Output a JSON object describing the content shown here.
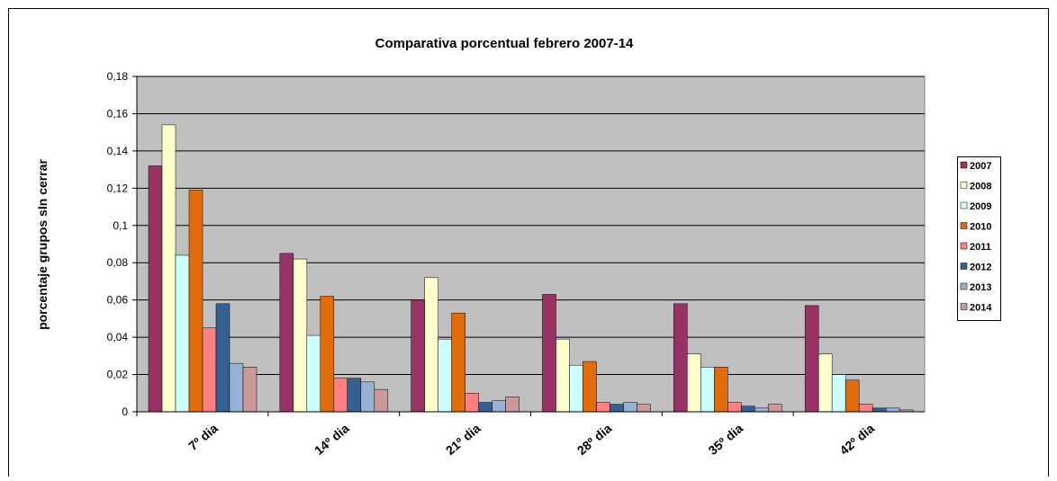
{
  "chart_data": {
    "type": "bar",
    "title": "Comparativa porcentual febrero 2007-14",
    "y_label": "porcentaje grupos sIn cerrar",
    "categories": [
      "7º dia",
      "14º dia",
      "21º dia",
      "28º dia",
      "35º dia",
      "42º dia"
    ],
    "series": [
      {
        "name": "2007",
        "color": "#993366",
        "values": [
          0.132,
          0.085,
          0.06,
          0.063,
          0.058,
          0.057
        ]
      },
      {
        "name": "2008",
        "color": "#ffffcc",
        "values": [
          0.154,
          0.082,
          0.072,
          0.039,
          0.031,
          0.031
        ]
      },
      {
        "name": "2009",
        "color": "#ccffff",
        "values": [
          0.084,
          0.041,
          0.039,
          0.025,
          0.024,
          0.02
        ]
      },
      {
        "name": "2010",
        "color": "#e36c0a",
        "values": [
          0.119,
          0.062,
          0.053,
          0.027,
          0.024,
          0.017
        ]
      },
      {
        "name": "2011",
        "color": "#ff8080",
        "values": [
          0.045,
          0.018,
          0.01,
          0.005,
          0.005,
          0.004
        ]
      },
      {
        "name": "2012",
        "color": "#366092",
        "values": [
          0.058,
          0.018,
          0.005,
          0.004,
          0.003,
          0.002
        ]
      },
      {
        "name": "2013",
        "color": "#95b3d7",
        "values": [
          0.026,
          0.016,
          0.006,
          0.005,
          0.002,
          0.002
        ]
      },
      {
        "name": "2014",
        "color": "#cc9999",
        "values": [
          0.024,
          0.012,
          0.008,
          0.004,
          0.004,
          0.001
        ]
      }
    ],
    "ylim": [
      0,
      0.18
    ],
    "yticks": [
      0,
      {
        "value": 0.02,
        "label": "0,02"
      },
      {
        "value": 0.04,
        "label": "0,04"
      },
      {
        "value": 0.06,
        "label": "0,06"
      },
      {
        "value": 0.08,
        "label": "0,08"
      },
      {
        "value": 0.1,
        "label": "0,1"
      },
      {
        "value": 0.12,
        "label": "0,12"
      },
      {
        "value": 0.14,
        "label": "0,14"
      },
      {
        "value": 0.16,
        "label": "0,16"
      },
      {
        "value": 0.18,
        "label": "0,18"
      }
    ],
    "grid": true,
    "legend": "right"
  }
}
